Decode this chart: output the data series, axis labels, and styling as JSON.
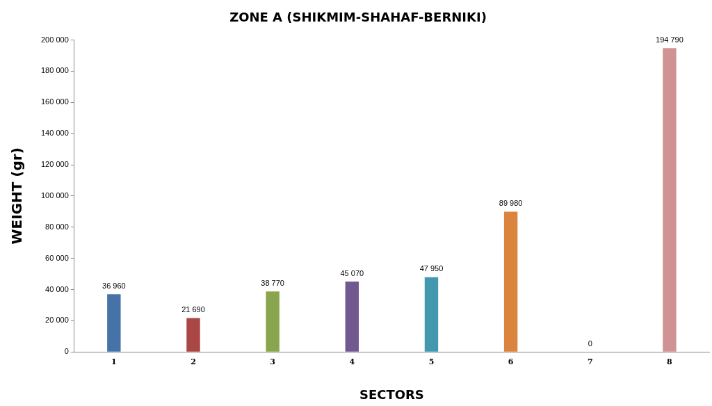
{
  "chart_data": {
    "type": "bar",
    "title": "ZONE A (SHIKMIM-SHAHAF-BERNIKI)",
    "xlabel": "SECTORS",
    "ylabel": "WEIGHT (gr)",
    "categories": [
      "1",
      "2",
      "3",
      "4",
      "5",
      "6",
      "7",
      "8"
    ],
    "values": [
      36960,
      21690,
      38770,
      45070,
      47950,
      89980,
      0,
      194790
    ],
    "value_labels": [
      "36 960",
      "21 690",
      "38 770",
      "45 070",
      "47 950",
      "89 980",
      "0",
      "194 790"
    ],
    "colors": [
      "#4572a7",
      "#aa4643",
      "#89a54e",
      "#71588f",
      "#4198af",
      "#db843d",
      "#93a9cf",
      "#d09292"
    ],
    "ylim": [
      0,
      200000
    ],
    "yticks": [
      {
        "value": 0,
        "label": "0"
      },
      {
        "value": 20000,
        "label": "20 000"
      },
      {
        "value": 40000,
        "label": "40 000"
      },
      {
        "value": 60000,
        "label": "60 000"
      },
      {
        "value": 80000,
        "label": "80 000"
      },
      {
        "value": 100000,
        "label": "100 000"
      },
      {
        "value": 120000,
        "label": "120 000"
      },
      {
        "value": 140000,
        "label": "140 000"
      },
      {
        "value": 160000,
        "label": "160 000"
      },
      {
        "value": 180000,
        "label": "180 000"
      },
      {
        "value": 200000,
        "label": "200 000"
      }
    ],
    "grid": false,
    "legend": false
  }
}
